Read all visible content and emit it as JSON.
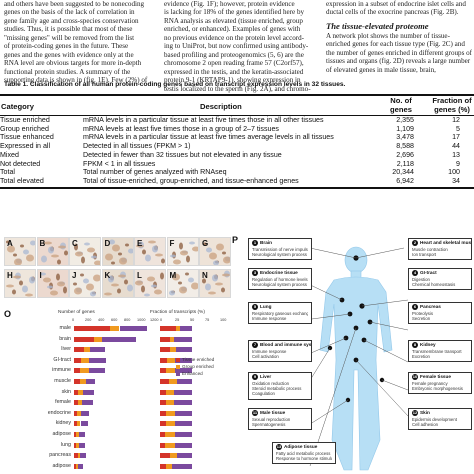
{
  "text_columns": {
    "left": [
      "and others have been suggested to be nonecoding",
      "genes on the basis of the lack of correlation in",
      "gene family age and cross-species conservation",
      "studies. Thus, it is possible that most of these",
      "\"missing genes\" will be removed from the list",
      "of protein-coding genes in the future. These",
      "genes and the genes with evidence only at the",
      "RNA level are obvious targets for more in-depth",
      "functional protein studies. A summary of the",
      "supporting data is shown in (fig. 1E). Few (2%) of"
    ],
    "middle": [
      "evidence (Fig. 1F); however, protein evidence",
      "is lacking for 18% of the genes identified here by",
      "RNA analysis as elevated (tissue enriched, group",
      "enriched, or enhanced). Examples of genes with",
      "no previous evidence on the protein level accord-",
      "ing to UniProt, but now confirmed using antibody-",
      "based profiling and proteogenomics (5, 6) are the",
      "chromosome 2 open reading frame 57 (C2orf57),",
      "expressed in the testis, and the keratin-associated",
      "protein 9-1 (KRTAP9-1), showing expression in",
      "testis localized to the sperm (Fig. 2A), and chromo-"
    ],
    "right_top": [
      "expression in a subset of endocrine islet cells and",
      "ductal cells of the exocrine pancreas (Fig. 2B)."
    ],
    "right_heading": "The tissue-elevated proteome",
    "right_bottom": [
      "A network plot shows the number of tissue-",
      "enriched genes for each tissue type (Fig. 2C) and",
      "the number of genes enriched in different groups of",
      "tissues and organs (fig. 2D) reveals a large number",
      "of elevated genes in male tissue, brain,"
    ]
  },
  "table": {
    "caption": "Table 1. Classification of all human protein-coding genes based on transcript expression levels in 32 tissues.",
    "headers": {
      "category": "Category",
      "description": "Description",
      "genes": "No. of genes",
      "fraction": "Fraction of genes (%)"
    },
    "genes_header_l1": "No. of",
    "genes_header_l2": "genes",
    "fraction_header_l1": "Fraction of",
    "fraction_header_l2": "genes (%)",
    "rows": [
      {
        "category": "Tissue enriched",
        "description": "mRNA levels in a particular tissue at least five times those in all other tissues",
        "genes": "2,355",
        "fraction": "12"
      },
      {
        "category": "Group enriched",
        "description": "mRNA levels at least five times those in a group of 2–7 tissues",
        "genes": "1,109",
        "fraction": "5"
      },
      {
        "category": "Tissue enhanced",
        "description": "mRNA levels in a particular tissue at least five times average levels in all tissues",
        "genes": "3,478",
        "fraction": "17"
      },
      {
        "category": "Expressed in all",
        "description": "Detected in all tissues (FPKM > 1)",
        "genes": "8,588",
        "fraction": "44"
      },
      {
        "category": "Mixed",
        "description": "Detected in fewer than 32 tissues but not elevated in any tissue",
        "genes": "2,696",
        "fraction": "13"
      },
      {
        "category": "Not detected",
        "description": "FPKM < 1 in all tissues",
        "genes": "2,118",
        "fraction": "9"
      },
      {
        "category": "Total",
        "description": "Total number of genes analyzed with RNAseq",
        "genes": "20,344",
        "fraction": "100"
      },
      {
        "category": "Total elevated",
        "description": "Total of tissue-enriched, group-enriched, and tissue-enhanced genes",
        "genes": "6,942",
        "fraction": "34"
      }
    ]
  },
  "figure": {
    "panel_labels": {
      "micro": "A",
      "o": "O",
      "p": "P"
    },
    "micro_tiles": [
      "A",
      "B",
      "C",
      "D",
      "E",
      "F",
      "G",
      "H",
      "I",
      "J",
      "K",
      "L",
      "M",
      "N"
    ],
    "panel_o": {
      "left_axis_title": "Number of genes",
      "right_axis_title": "Fraction of transcripts (%)",
      "left_ticks": [
        "0",
        "200",
        "400",
        "600",
        "800",
        "1000",
        "1200"
      ],
      "right_ticks": [
        "0",
        "25",
        "50",
        "75",
        "100"
      ],
      "legend": [
        "Tissue enriched",
        "Group enriched",
        "Enhanced"
      ],
      "colors": {
        "tissue_enriched": "#d4342a",
        "group_enriched": "#f09a1f",
        "enhanced": "#7b4a9e"
      }
    },
    "panel_p_boxes": [
      {
        "n": "1",
        "title": "Brain",
        "lines": [
          "Transmission of nerve impulse",
          "Neurological system process"
        ]
      },
      {
        "n": "2",
        "title": "Heart and skeletal muscle",
        "lines": [
          "Muscle contraction",
          "Ion transport"
        ]
      },
      {
        "n": "3",
        "title": "Endocrine tissue",
        "lines": [
          "Regulation of hormone levels",
          "Neurological system process"
        ]
      },
      {
        "n": "4",
        "title": "GI-tract",
        "lines": [
          "Digestion",
          "Chemical homeostasis"
        ]
      },
      {
        "n": "5",
        "title": "Lung",
        "lines": [
          "Respiratory gaseous exchange",
          "Immune response"
        ]
      },
      {
        "n": "6",
        "title": "Pancreas",
        "lines": [
          "Proteolysis",
          "Secretion"
        ]
      },
      {
        "n": "7",
        "title": "Blood and immune system",
        "lines": [
          "Immune response",
          "Cell activation"
        ]
      },
      {
        "n": "8",
        "title": "Kidney",
        "lines": [
          "Transmembrane transport",
          "Excretion"
        ]
      },
      {
        "n": "9",
        "title": "Liver",
        "lines": [
          "Oxidation reduction",
          "Steroid metabolic process",
          "Coagulation"
        ]
      },
      {
        "n": "10",
        "title": "Female tissue",
        "lines": [
          "Female pregnancy",
          "Embryonic morphogenesis"
        ]
      },
      {
        "n": "11",
        "title": "Male tissue",
        "lines": [
          "Sexual reproduction",
          "Spermatogenesis"
        ]
      },
      {
        "n": "12",
        "title": "Skin",
        "lines": [
          "Epidermis development",
          "Cell adhesion"
        ]
      },
      {
        "n": "13",
        "title": "Adipose tissue",
        "lines": [
          "Fatty acid metabolic process",
          "Response to hormone stimulus"
        ]
      }
    ]
  },
  "chart_data": {
    "type": "bar",
    "stacked": true,
    "orientation": "horizontal",
    "xlabel": "Number of genes",
    "xlim": [
      0,
      1200
    ],
    "categories": [
      "male",
      "brain",
      "liver",
      "GI-tract",
      "immune",
      "muscle",
      "skin",
      "female",
      "endocrine",
      "kidney",
      "adipose",
      "lung",
      "pancreas",
      "adipose"
    ],
    "series": [
      {
        "name": "Tissue enriched",
        "color": "#d4342a",
        "values": [
          560,
          310,
          150,
          110,
          95,
          90,
          60,
          55,
          45,
          40,
          30,
          30,
          55,
          25
        ]
      },
      {
        "name": "Group enriched",
        "color": "#f09a1f",
        "values": [
          140,
          120,
          90,
          120,
          130,
          90,
          80,
          70,
          60,
          60,
          50,
          50,
          40,
          30
        ]
      },
      {
        "name": "Enhanced",
        "color": "#7b4a9e",
        "values": [
          420,
          520,
          240,
          260,
          250,
          150,
          170,
          160,
          120,
          110,
          95,
          95,
          85,
          90
        ]
      }
    ]
  }
}
